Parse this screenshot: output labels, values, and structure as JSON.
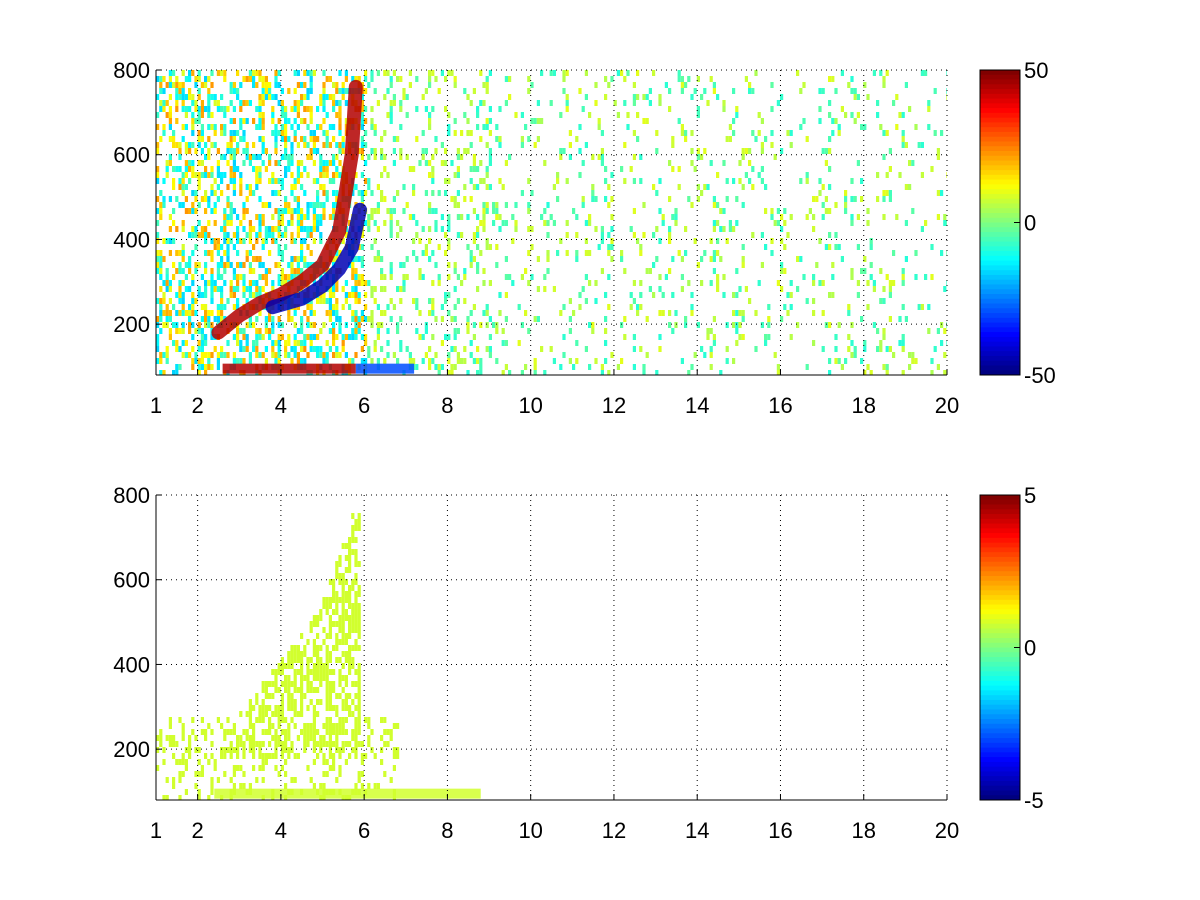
{
  "chart_data": [
    {
      "type": "heatmap",
      "title": "",
      "xlabel": "",
      "ylabel": "",
      "xlim": [
        1,
        20
      ],
      "ylim": [
        80,
        800
      ],
      "x_ticks": [
        1,
        2,
        4,
        6,
        8,
        10,
        12,
        14,
        16,
        18,
        20
      ],
      "y_ticks": [
        200,
        400,
        600,
        800
      ],
      "grid": true,
      "colormap": "jet",
      "colorbar": {
        "range": [
          -50,
          50
        ],
        "ticks": [
          50,
          0,
          -50
        ]
      },
      "features": [
        {
          "kind": "ridge",
          "sign": "positive",
          "value": 45,
          "x_start": 2.5,
          "x_end": 5.8,
          "points": [
            [
              2.5,
              180
            ],
            [
              3,
              220
            ],
            [
              3.5,
              250
            ],
            [
              4,
              270
            ],
            [
              4.5,
              300
            ],
            [
              5,
              340
            ],
            [
              5.4,
              420
            ],
            [
              5.7,
              600
            ],
            [
              5.8,
              760
            ]
          ]
        },
        {
          "kind": "ridge",
          "sign": "negative",
          "value": -45,
          "x_start": 3.8,
          "x_end": 5.9,
          "points": [
            [
              3.8,
              240
            ],
            [
              4.5,
              260
            ],
            [
              5,
              290
            ],
            [
              5.4,
              330
            ],
            [
              5.7,
              380
            ],
            [
              5.9,
              470
            ]
          ]
        },
        {
          "kind": "band",
          "sign": "positive",
          "value": 45,
          "x_start": 2.6,
          "x_end": 5.8,
          "y": 95
        },
        {
          "kind": "band",
          "sign": "negative",
          "value": -30,
          "x_start": 5.8,
          "x_end": 7.2,
          "y": 95
        }
      ],
      "scatter_density": {
        "x_dense_end": 6,
        "x_end": 20
      }
    },
    {
      "type": "heatmap",
      "title": "",
      "xlabel": "",
      "ylabel": "",
      "xlim": [
        1,
        20
      ],
      "ylim": [
        80,
        800
      ],
      "x_ticks": [
        1,
        2,
        4,
        6,
        8,
        10,
        12,
        14,
        16,
        18,
        20
      ],
      "y_ticks": [
        200,
        400,
        600,
        800
      ],
      "grid": true,
      "colormap": "jet",
      "colorbar": {
        "range": [
          -5,
          5
        ],
        "ticks": [
          5,
          0,
          -5
        ]
      },
      "features": [
        {
          "kind": "region",
          "value": 0.8,
          "x_start": 2.4,
          "x_end": 5.9,
          "lower": 180,
          "upper_curve": [
            [
              2.4,
              200
            ],
            [
              3,
              300
            ],
            [
              4,
              420
            ],
            [
              5,
              560
            ],
            [
              5.8,
              790
            ]
          ]
        },
        {
          "kind": "band",
          "value": 0.8,
          "x_start": 2.4,
          "x_end": 8.8,
          "y": 95
        }
      ],
      "scatter_density": {
        "x_dense_end": 6.5,
        "x_end": 9
      }
    }
  ]
}
